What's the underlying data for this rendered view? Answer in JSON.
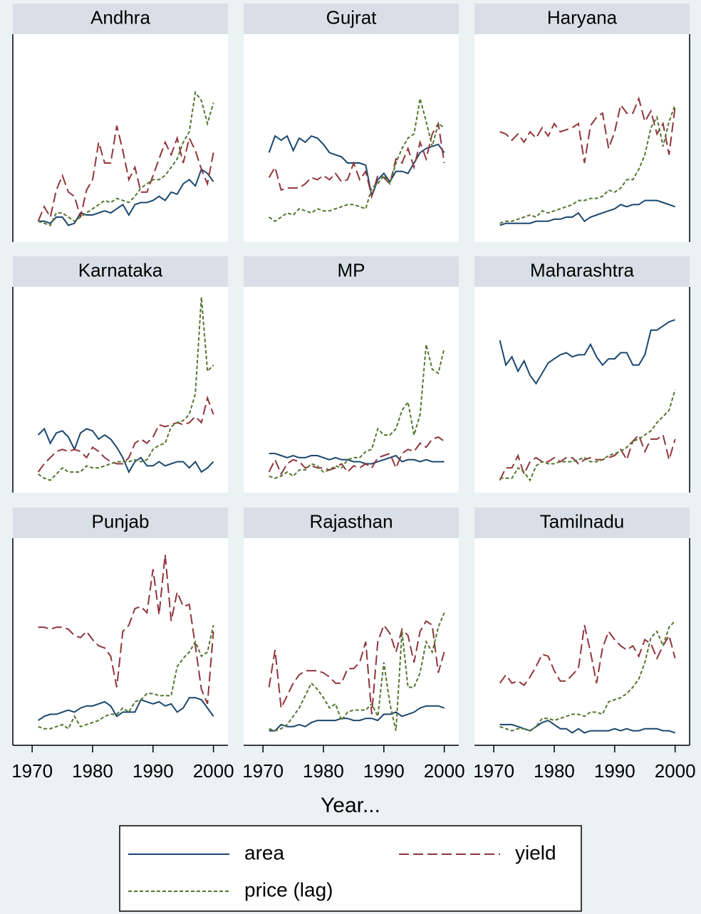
{
  "chart_data": {
    "type": "line",
    "xlabel": "Year...",
    "x": [
      1971,
      1972,
      1973,
      1974,
      1975,
      1976,
      1977,
      1978,
      1979,
      1980,
      1981,
      1982,
      1983,
      1984,
      1985,
      1986,
      1987,
      1988,
      1989,
      1990,
      1991,
      1992,
      1993,
      1994,
      1995,
      1996,
      1997,
      1998,
      1999,
      2000
    ],
    "xlim": [
      1966.8,
      2002.4
    ],
    "xticks": [
      1970,
      1980,
      1990,
      2000
    ],
    "ylim": [
      0,
      100
    ],
    "series": [
      {
        "name": "area",
        "color": "#1a476f",
        "dash": "none"
      },
      {
        "name": "yield",
        "color": "#90353b",
        "dash": "14 6"
      },
      {
        "name": "price (lag)",
        "color": "#55752f",
        "dash": "5 3"
      }
    ],
    "panels": [
      {
        "title": "Andhra",
        "values": [
          [
            10,
            10,
            9,
            12,
            12,
            8,
            9,
            14,
            13,
            13,
            14,
            15,
            14,
            16,
            18,
            13,
            18,
            19,
            19,
            20,
            22,
            20,
            24,
            23,
            28,
            30,
            27,
            35,
            33,
            29
          ],
          [
            10,
            17,
            12,
            25,
            32,
            24,
            22,
            12,
            25,
            30,
            48,
            38,
            38,
            56,
            44,
            30,
            36,
            24,
            24,
            32,
            40,
            48,
            42,
            50,
            38,
            50,
            44,
            35,
            28,
            43
          ],
          [
            10,
            9,
            8,
            14,
            14,
            12,
            10,
            12,
            14,
            16,
            18,
            20,
            19,
            21,
            20,
            19,
            22,
            26,
            28,
            30,
            30,
            32,
            36,
            40,
            48,
            53,
            72,
            68,
            57,
            67
          ]
        ]
      },
      {
        "title": "Gujrat",
        "values": [
          [
            43,
            51,
            49,
            51,
            44,
            50,
            48,
            51,
            50,
            47,
            43,
            42,
            41,
            38,
            38,
            38,
            37,
            22,
            30,
            33,
            29,
            34,
            34,
            33,
            38,
            43,
            45,
            46,
            47,
            43
          ],
          [
            31,
            36,
            25,
            26,
            26,
            26,
            28,
            31,
            30,
            32,
            30,
            33,
            29,
            30,
            38,
            30,
            34,
            22,
            32,
            31,
            28,
            40,
            38,
            45,
            36,
            48,
            40,
            52,
            57,
            38
          ],
          [
            12,
            10,
            12,
            14,
            13,
            16,
            15,
            14,
            16,
            15,
            15,
            16,
            17,
            18,
            18,
            17,
            16,
            26,
            28,
            32,
            28,
            38,
            45,
            50,
            52,
            69,
            58,
            46,
            57,
            55
          ]
        ]
      },
      {
        "title": "Haryana",
        "values": [
          [
            8,
            9,
            9,
            9,
            9,
            9,
            10,
            10,
            10,
            11,
            11,
            12,
            12,
            14,
            10,
            12,
            13,
            14,
            15,
            16,
            18,
            17,
            18,
            18,
            20,
            20,
            20,
            19,
            18,
            17
          ],
          [
            53,
            52,
            49,
            52,
            48,
            53,
            50,
            55,
            51,
            57,
            53,
            54,
            55,
            57,
            38,
            56,
            60,
            62,
            45,
            53,
            66,
            62,
            62,
            69,
            58,
            63,
            52,
            57,
            42,
            65
          ],
          [
            9,
            10,
            10,
            11,
            12,
            13,
            12,
            15,
            14,
            15,
            16,
            17,
            18,
            20,
            20,
            21,
            21,
            22,
            25,
            24,
            26,
            30,
            30,
            35,
            42,
            55,
            60,
            46,
            58,
            66
          ]
        ]
      },
      {
        "title": "Karnataka",
        "values": [
          [
            28,
            31,
            24,
            29,
            30,
            27,
            21,
            29,
            31,
            30,
            26,
            28,
            26,
            22,
            17,
            10,
            15,
            17,
            13,
            13,
            15,
            13,
            14,
            15,
            15,
            12,
            15,
            10,
            12,
            15
          ],
          [
            10,
            14,
            17,
            20,
            21,
            20,
            21,
            20,
            17,
            22,
            20,
            17,
            15,
            14,
            14,
            17,
            24,
            26,
            24,
            27,
            33,
            32,
            33,
            34,
            33,
            34,
            37,
            34,
            46,
            38
          ],
          [
            9,
            7,
            6,
            9,
            12,
            10,
            10,
            10,
            13,
            12,
            12,
            13,
            14,
            15,
            15,
            15,
            16,
            15,
            16,
            21,
            23,
            24,
            32,
            34,
            35,
            38,
            48,
            95,
            59,
            62
          ]
        ]
      },
      {
        "title": "MP",
        "values": [
          [
            19,
            19,
            18,
            17,
            18,
            17,
            17,
            18,
            18,
            17,
            16,
            17,
            16,
            16,
            15,
            15,
            14,
            14,
            15,
            16,
            17,
            18,
            15,
            16,
            16,
            15,
            16,
            15,
            15,
            15
          ],
          [
            10,
            16,
            9,
            14,
            16,
            15,
            12,
            13,
            12,
            12,
            11,
            12,
            14,
            10,
            13,
            12,
            14,
            12,
            17,
            18,
            19,
            12,
            19,
            21,
            20,
            24,
            22,
            26,
            27,
            25
          ],
          [
            8,
            7,
            8,
            10,
            8,
            11,
            11,
            14,
            13,
            10,
            11,
            13,
            12,
            16,
            17,
            17,
            20,
            21,
            31,
            28,
            28,
            31,
            40,
            44,
            28,
            38,
            72,
            60,
            58,
            70
          ]
        ]
      },
      {
        "title": "Maharashtra",
        "values": [
          [
            74,
            62,
            66,
            59,
            64,
            57,
            53,
            58,
            63,
            65,
            67,
            68,
            66,
            67,
            67,
            72,
            66,
            62,
            65,
            65,
            68,
            68,
            62,
            62,
            67,
            79,
            79,
            81,
            83,
            84
          ],
          [
            6,
            12,
            12,
            18,
            9,
            15,
            17,
            15,
            15,
            17,
            15,
            17,
            17,
            14,
            16,
            17,
            16,
            16,
            17,
            18,
            21,
            16,
            25,
            28,
            20,
            26,
            26,
            28,
            16,
            26
          ],
          [
            7,
            7,
            7,
            12,
            10,
            6,
            13,
            15,
            14,
            14,
            15,
            15,
            15,
            16,
            17,
            15,
            15,
            16,
            18,
            19,
            20,
            22,
            25,
            26,
            28,
            30,
            34,
            37,
            40,
            50
          ]
        ]
      },
      {
        "title": "Punjab",
        "values": [
          [
            12,
            14,
            15,
            15,
            16,
            17,
            16,
            18,
            19,
            19,
            20,
            21,
            19,
            14,
            16,
            16,
            16,
            22,
            21,
            20,
            21,
            19,
            20,
            16,
            18,
            23,
            23,
            22,
            18,
            14
          ],
          [
            57,
            57,
            56,
            57,
            57,
            56,
            53,
            52,
            55,
            51,
            48,
            47,
            43,
            28,
            55,
            58,
            66,
            67,
            64,
            85,
            63,
            92,
            60,
            74,
            67,
            68,
            48,
            27,
            20,
            55
          ],
          [
            9,
            8,
            8,
            9,
            10,
            8,
            14,
            9,
            10,
            11,
            12,
            14,
            15,
            15,
            18,
            16,
            21,
            22,
            25,
            25,
            24,
            24,
            24,
            38,
            42,
            45,
            50,
            43,
            45,
            58
          ]
        ]
      },
      {
        "title": "Rajasthan",
        "values": [
          [
            7,
            7,
            10,
            9,
            9,
            10,
            9,
            11,
            12,
            12,
            12,
            12,
            13,
            13,
            12,
            12,
            13,
            13,
            12,
            15,
            15,
            16,
            14,
            15,
            16,
            18,
            19,
            19,
            19,
            18
          ],
          [
            28,
            46,
            18,
            24,
            30,
            34,
            36,
            36,
            36,
            35,
            33,
            30,
            30,
            37,
            37,
            40,
            50,
            15,
            50,
            58,
            54,
            45,
            56,
            53,
            40,
            55,
            60,
            58,
            35,
            45
          ],
          [
            8,
            7,
            8,
            10,
            14,
            18,
            24,
            30,
            27,
            23,
            18,
            20,
            12,
            16,
            17,
            17,
            17,
            20,
            14,
            40,
            20,
            7,
            55,
            28,
            28,
            35,
            50,
            45,
            57,
            64
          ]
        ]
      },
      {
        "title": "Tamilnadu",
        "values": [
          [
            10,
            10,
            10,
            9,
            8,
            7,
            9,
            11,
            12,
            10,
            8,
            8,
            6,
            8,
            6,
            7,
            7,
            7,
            7,
            8,
            7,
            8,
            7,
            7,
            8,
            8,
            8,
            7,
            7,
            6
          ],
          [
            30,
            34,
            30,
            31,
            29,
            33,
            38,
            44,
            43,
            36,
            31,
            31,
            34,
            37,
            58,
            45,
            30,
            47,
            55,
            51,
            48,
            46,
            48,
            43,
            51,
            49,
            42,
            48,
            53,
            42
          ],
          [
            9,
            8,
            7,
            8,
            8,
            7,
            9,
            13,
            13,
            12,
            13,
            14,
            15,
            15,
            14,
            16,
            16,
            15,
            21,
            22,
            23,
            25,
            28,
            32,
            40,
            52,
            55,
            48,
            57,
            60
          ]
        ]
      }
    ]
  }
}
